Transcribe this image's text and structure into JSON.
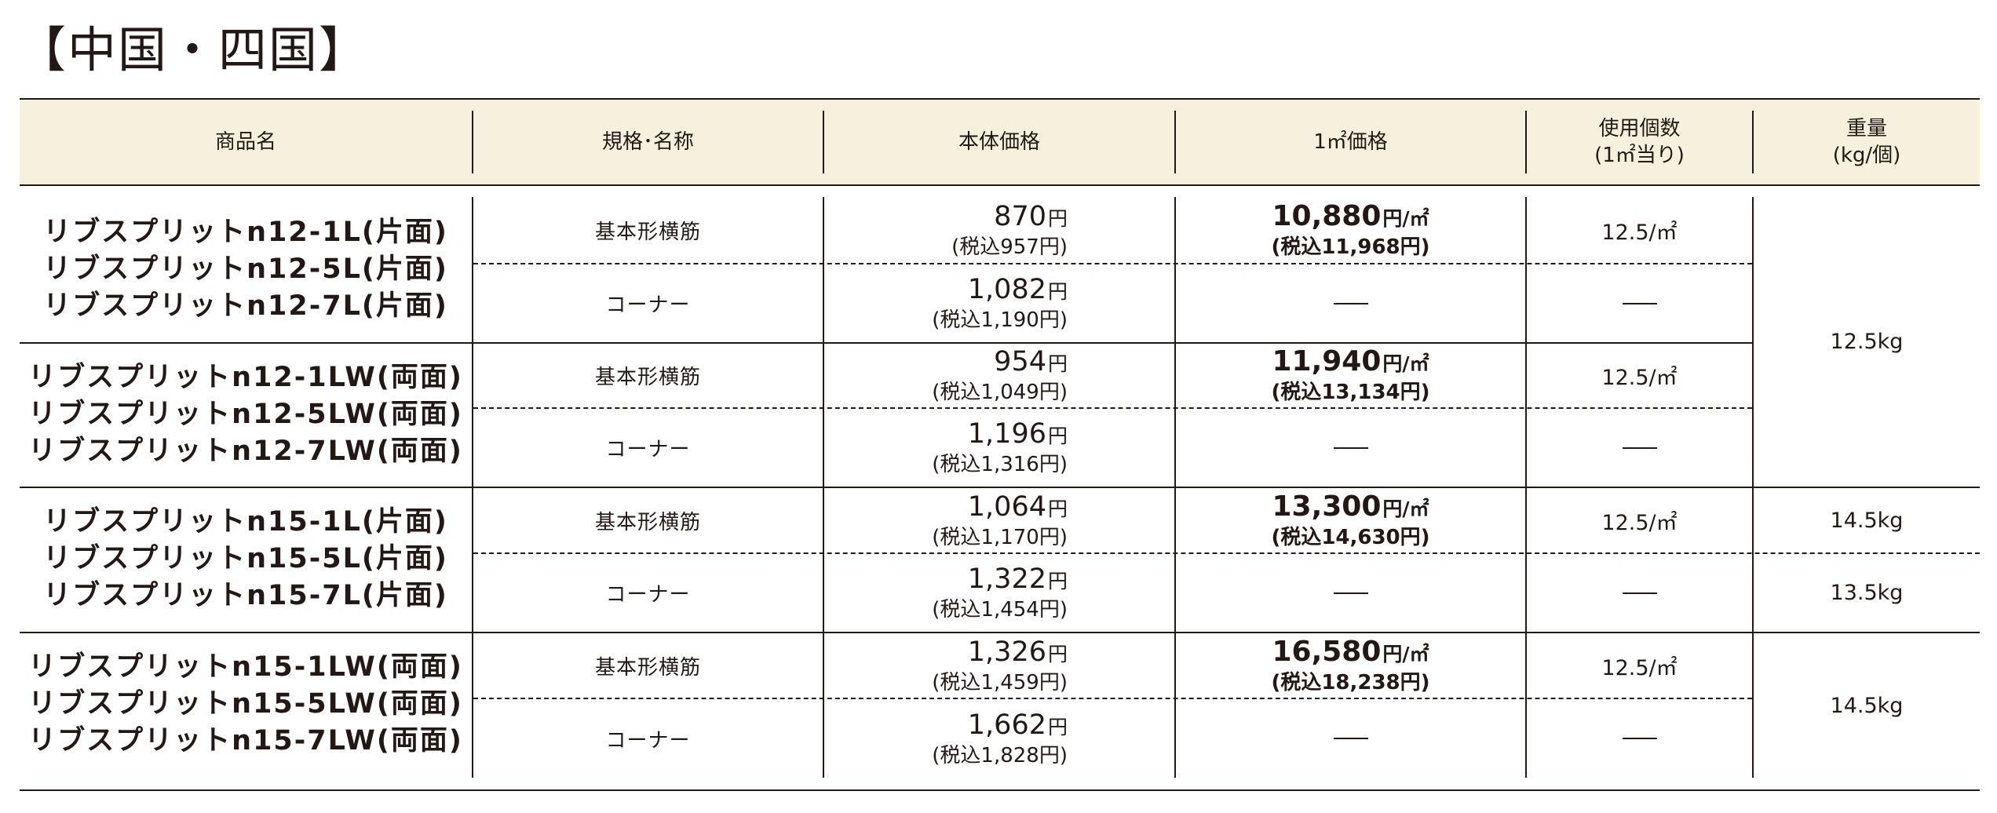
{
  "region_title": "【中国・四国】",
  "headers": {
    "product": "商品名",
    "spec": "規格･名称",
    "price": "本体価格",
    "sqm_price": "1㎡価格",
    "usage_line1": "使用個数",
    "usage_line2": "(1㎡当り)",
    "weight_line1": "重量",
    "weight_line2": "(kg/個)"
  },
  "groups": [
    {
      "product_lines": [
        "リブスプリットn12-1L(片面)",
        "リブスプリットn12-5L(片面)",
        "リブスプリットn12-7L(片面)"
      ],
      "sqm_price": "10,880",
      "sqm_unit": "円/㎡",
      "sqm_tax": "(税込11,968円)",
      "usage": "12.5/㎡",
      "rows": [
        {
          "spec": "基本形横筋",
          "price": "870",
          "yen": "円",
          "tax": "(税込957円)"
        },
        {
          "spec": "コーナー",
          "price": "1,082",
          "yen": "円",
          "tax": "(税込1,190円)"
        }
      ]
    },
    {
      "product_lines": [
        "リブスプリットn12-1LW(両面)",
        "リブスプリットn12-5LW(両面)",
        "リブスプリットn12-7LW(両面)"
      ],
      "sqm_price": "11,940",
      "sqm_unit": "円/㎡",
      "sqm_tax": "(税込13,134円)",
      "usage": "12.5/㎡",
      "rows": [
        {
          "spec": "基本形横筋",
          "price": "954",
          "yen": "円",
          "tax": "(税込1,049円)"
        },
        {
          "spec": "コーナー",
          "price": "1,196",
          "yen": "円",
          "tax": "(税込1,316円)"
        }
      ]
    },
    {
      "product_lines": [
        "リブスプリットn15-1L(片面)",
        "リブスプリットn15-5L(片面)",
        "リブスプリットn15-7L(片面)"
      ],
      "sqm_price": "13,300",
      "sqm_unit": "円/㎡",
      "sqm_tax": "(税込14,630円)",
      "usage": "12.5/㎡",
      "rows": [
        {
          "spec": "基本形横筋",
          "price": "1,064",
          "yen": "円",
          "tax": "(税込1,170円)"
        },
        {
          "spec": "コーナー",
          "price": "1,322",
          "yen": "円",
          "tax": "(税込1,454円)"
        }
      ]
    },
    {
      "product_lines": [
        "リブスプリットn15-1LW(両面)",
        "リブスプリットn15-5LW(両面)",
        "リブスプリットn15-7LW(両面)"
      ],
      "sqm_price": "16,580",
      "sqm_unit": "円/㎡",
      "sqm_tax": "(税込18,238円)",
      "usage": "12.5/㎡",
      "rows": [
        {
          "spec": "基本形横筋",
          "price": "1,326",
          "yen": "円",
          "tax": "(税込1,459円)"
        },
        {
          "spec": "コーナー",
          "price": "1,662",
          "yen": "円",
          "tax": "(税込1,828円)"
        }
      ]
    }
  ],
  "weights": {
    "w_n12": "12.5kg",
    "w_n15_1l_base": "14.5kg",
    "w_n15_1l_corner": "13.5kg",
    "w_n15_1lw": "14.5kg"
  },
  "dash_symbol": "—"
}
